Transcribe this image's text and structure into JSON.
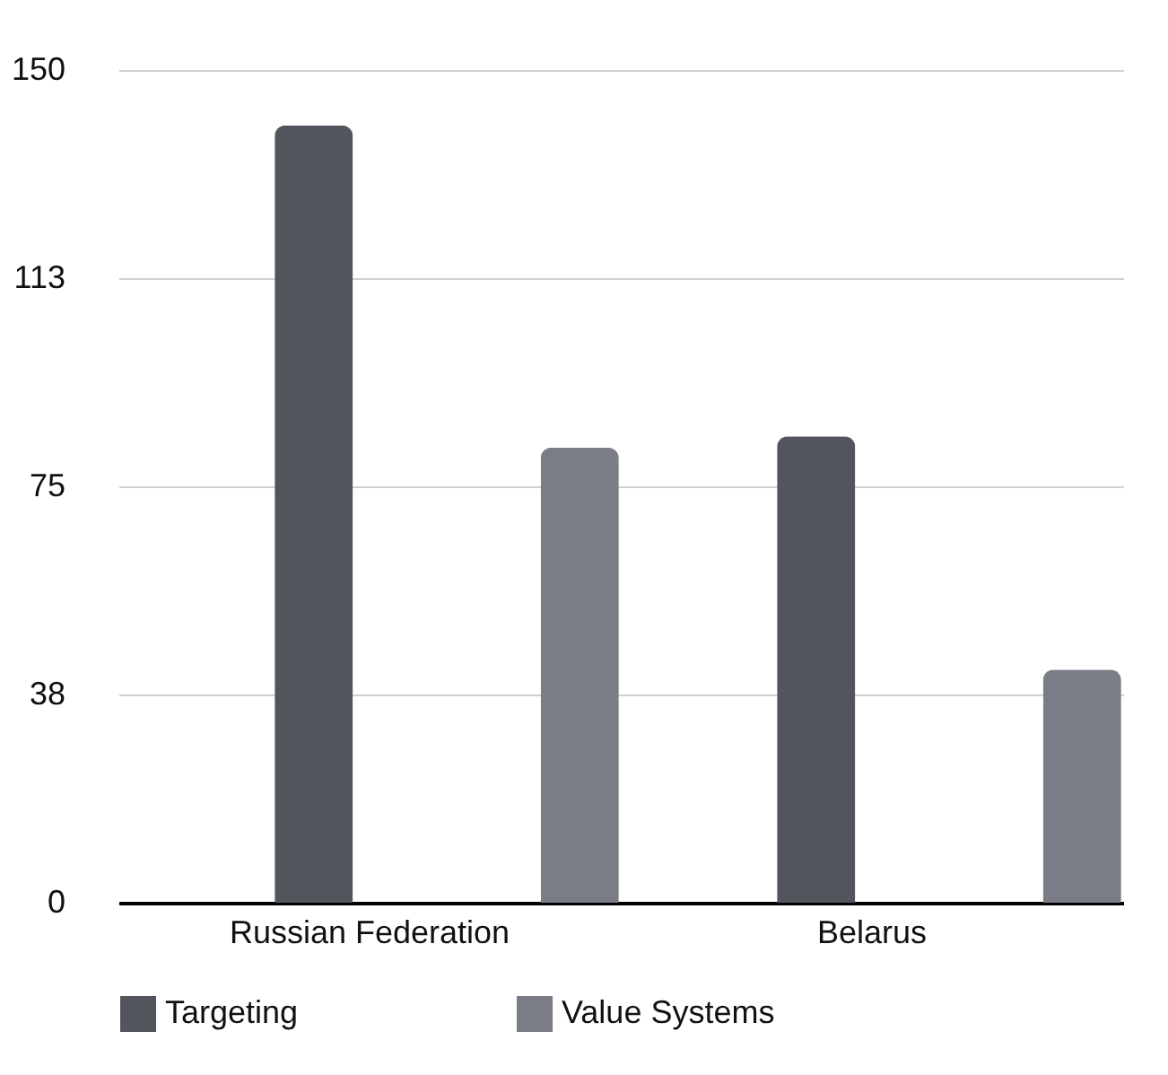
{
  "chart_data": {
    "type": "bar",
    "categories": [
      "Russian Federation",
      "Belarus"
    ],
    "series": [
      {
        "name": "Targeting",
        "color": "#53555d",
        "values": [
          140,
          84
        ]
      },
      {
        "name": "Value Systems",
        "color": "#7a7d85",
        "values": [
          82,
          42
        ]
      }
    ],
    "ylim": [
      0,
      150
    ],
    "yticks": [
      0,
      {
        "value": 37.5,
        "label": "38"
      },
      75,
      {
        "value": 112.5,
        "label": "113"
      },
      150
    ],
    "grid": "y",
    "legend": "bottom"
  }
}
